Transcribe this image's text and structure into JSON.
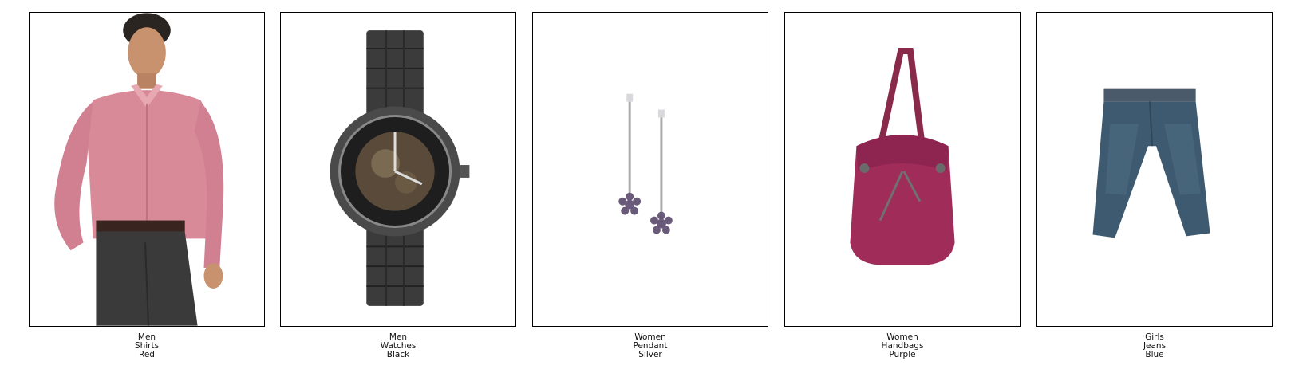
{
  "items": [
    {
      "image_icon": "shirt-model-icon",
      "labels": [
        "Men",
        "Shirts",
        "Red"
      ]
    },
    {
      "image_icon": "wristwatch-icon",
      "labels": [
        "Men",
        "Watches",
        "Black"
      ]
    },
    {
      "image_icon": "earrings-pendant-icon",
      "labels": [
        "Women",
        "Pendant",
        "Silver"
      ]
    },
    {
      "image_icon": "handbag-icon",
      "labels": [
        "Women",
        "Handbags",
        "Purple"
      ]
    },
    {
      "image_icon": "jeans-icon",
      "labels": [
        "Girls",
        "Jeans",
        "Blue"
      ]
    }
  ],
  "colors": {
    "shirt": "#d98a98",
    "watch": "#3b3b3b",
    "pendant": "#b8b8c4",
    "bag": "#a02c5a",
    "jeans": "#3e5a70"
  }
}
